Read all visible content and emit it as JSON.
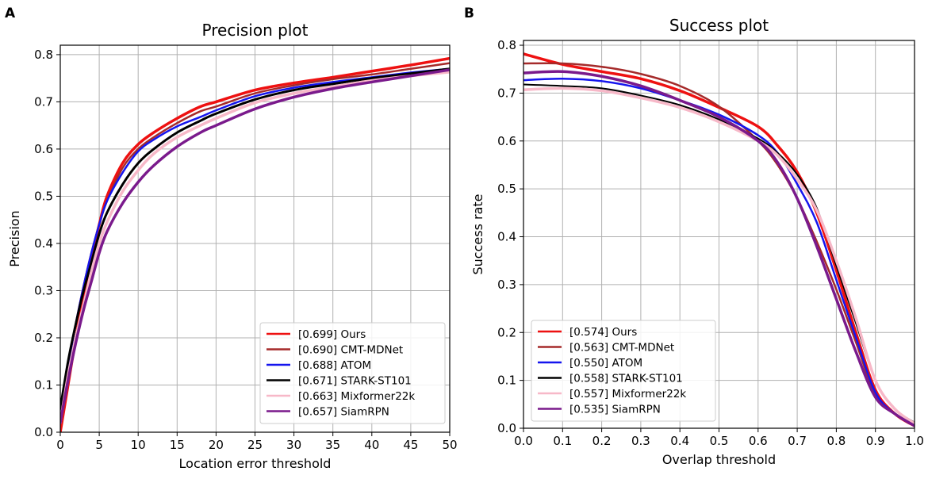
{
  "chart_data": [
    {
      "panel": "A",
      "type": "line",
      "title": "Precision plot",
      "xlabel": "Location error threshold",
      "ylabel": "Precision",
      "xlim": [
        0,
        50
      ],
      "ylim": [
        0,
        0.82
      ],
      "xticks": [
        0,
        5,
        10,
        15,
        20,
        25,
        30,
        35,
        40,
        45,
        50
      ],
      "yticks": [
        0.0,
        0.1,
        0.2,
        0.3,
        0.4,
        0.5,
        0.6,
        0.7,
        0.8
      ],
      "grid": true,
      "legend_position": "lower-right",
      "x": [
        0,
        1,
        2,
        3,
        4,
        5,
        6,
        8,
        10,
        12,
        15,
        18,
        20,
        25,
        30,
        35,
        40,
        45,
        50
      ],
      "series": [
        {
          "name": "Ours",
          "legend": "[0.699] Ours",
          "color": "#ee1111",
          "width": 3.5,
          "values": [
            0.0,
            0.1,
            0.2,
            0.29,
            0.37,
            0.44,
            0.5,
            0.57,
            0.61,
            0.635,
            0.665,
            0.69,
            0.7,
            0.725,
            0.74,
            0.752,
            0.765,
            0.778,
            0.792
          ]
        },
        {
          "name": "CMT-MDNet",
          "legend": "[0.690] CMT-MDNet",
          "color": "#a52a2a",
          "width": 2.5,
          "values": [
            0.03,
            0.14,
            0.23,
            0.31,
            0.38,
            0.44,
            0.49,
            0.56,
            0.6,
            0.625,
            0.655,
            0.68,
            0.69,
            0.718,
            0.735,
            0.748,
            0.758,
            0.77,
            0.782
          ]
        },
        {
          "name": "ATOM",
          "legend": "[0.688] ATOM",
          "color": "#1515ee",
          "width": 2.5,
          "values": [
            0.03,
            0.14,
            0.23,
            0.31,
            0.38,
            0.44,
            0.49,
            0.55,
            0.595,
            0.62,
            0.648,
            0.668,
            0.682,
            0.712,
            0.73,
            0.742,
            0.752,
            0.762,
            0.77
          ]
        },
        {
          "name": "STARK-ST101",
          "legend": "[0.671] STARK-ST101",
          "color": "#000000",
          "width": 3,
          "values": [
            0.05,
            0.15,
            0.23,
            0.3,
            0.36,
            0.42,
            0.465,
            0.525,
            0.57,
            0.6,
            0.635,
            0.66,
            0.675,
            0.705,
            0.725,
            0.738,
            0.75,
            0.76,
            0.77
          ]
        },
        {
          "name": "Mixformer22k",
          "legend": "[0.663] Mixformer22k",
          "color": "#f7b8c8",
          "width": 3.5,
          "values": [
            0.02,
            0.12,
            0.2,
            0.27,
            0.34,
            0.4,
            0.445,
            0.51,
            0.555,
            0.59,
            0.625,
            0.65,
            0.665,
            0.698,
            0.718,
            0.732,
            0.745,
            0.755,
            0.763
          ]
        },
        {
          "name": "SiamRPN",
          "legend": "[0.657] SiamRPN",
          "color": "#7a1a8c",
          "width": 3.5,
          "values": [
            0.02,
            0.11,
            0.19,
            0.26,
            0.32,
            0.38,
            0.425,
            0.485,
            0.53,
            0.565,
            0.605,
            0.635,
            0.65,
            0.685,
            0.71,
            0.728,
            0.742,
            0.755,
            0.768
          ]
        }
      ]
    },
    {
      "panel": "B",
      "type": "line",
      "title": "Success plot",
      "xlabel": "Overlap threshold",
      "ylabel": "Success rate",
      "xlim": [
        0,
        1
      ],
      "ylim": [
        0,
        0.81
      ],
      "xticks": [
        0.0,
        0.1,
        0.2,
        0.3,
        0.4,
        0.5,
        0.6,
        0.7,
        0.8,
        0.9,
        1.0
      ],
      "yticks": [
        0.0,
        0.1,
        0.2,
        0.3,
        0.4,
        0.5,
        0.6,
        0.7,
        0.8
      ],
      "grid": true,
      "legend_position": "lower-left",
      "x": [
        0.0,
        0.1,
        0.2,
        0.3,
        0.4,
        0.5,
        0.6,
        0.65,
        0.7,
        0.75,
        0.8,
        0.85,
        0.9,
        0.95,
        1.0
      ],
      "series": [
        {
          "name": "Ours",
          "legend": "[0.574] Ours",
          "color": "#ee1111",
          "width": 3.5,
          "values": [
            0.782,
            0.76,
            0.745,
            0.73,
            0.705,
            0.67,
            0.63,
            0.59,
            0.535,
            0.45,
            0.33,
            0.2,
            0.08,
            0.03,
            0.005
          ]
        },
        {
          "name": "CMT-MDNet",
          "legend": "[0.563] CMT-MDNet",
          "color": "#a52a2a",
          "width": 2.5,
          "values": [
            0.762,
            0.762,
            0.755,
            0.74,
            0.715,
            0.672,
            0.6,
            0.55,
            0.48,
            0.39,
            0.29,
            0.18,
            0.07,
            0.03,
            0.005
          ]
        },
        {
          "name": "ATOM",
          "legend": "[0.550] ATOM",
          "color": "#1515ee",
          "width": 2.5,
          "values": [
            0.727,
            0.73,
            0.725,
            0.71,
            0.685,
            0.655,
            0.612,
            0.575,
            0.51,
            0.43,
            0.31,
            0.19,
            0.075,
            0.03,
            0.005
          ]
        },
        {
          "name": "STARK-ST101",
          "legend": "[0.558] STARK-ST101",
          "color": "#000000",
          "width": 2,
          "values": [
            0.718,
            0.715,
            0.71,
            0.695,
            0.675,
            0.645,
            0.605,
            0.575,
            0.53,
            0.46,
            0.34,
            0.22,
            0.1,
            0.04,
            0.012
          ]
        },
        {
          "name": "Mixformer22k",
          "legend": "[0.557] Mixformer22k",
          "color": "#f7b8c8",
          "width": 3.5,
          "values": [
            0.707,
            0.71,
            0.705,
            0.69,
            0.67,
            0.64,
            0.6,
            0.57,
            0.52,
            0.455,
            0.35,
            0.23,
            0.1,
            0.04,
            0.01
          ]
        },
        {
          "name": "SiamRPN",
          "legend": "[0.535] SiamRPN",
          "color": "#7a1a8c",
          "width": 3.5,
          "values": [
            0.742,
            0.745,
            0.735,
            0.715,
            0.685,
            0.65,
            0.6,
            0.555,
            0.48,
            0.38,
            0.27,
            0.16,
            0.065,
            0.03,
            0.005
          ]
        }
      ]
    }
  ],
  "panels": [
    {
      "label": "A"
    },
    {
      "label": "B"
    }
  ]
}
